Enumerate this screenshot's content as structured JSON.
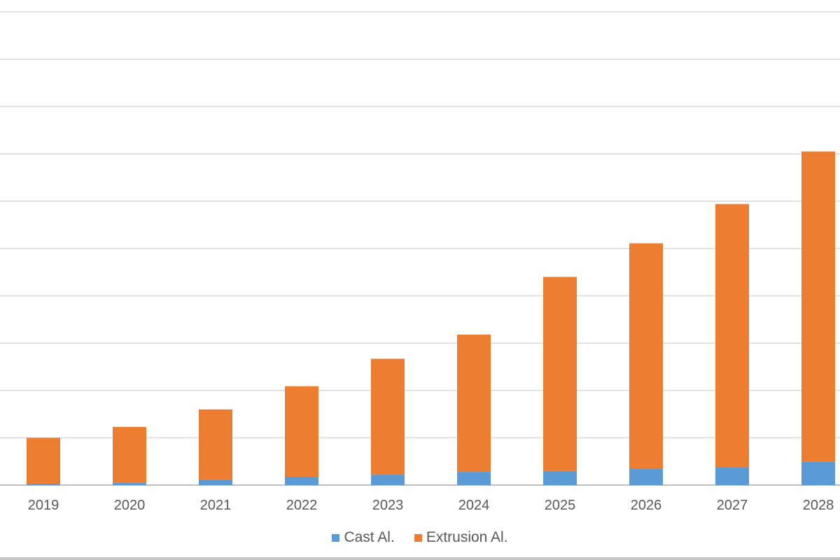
{
  "chart_data": {
    "type": "bar",
    "stacked": true,
    "categories": [
      "2019",
      "2020",
      "2021",
      "2022",
      "2023",
      "2024",
      "2025",
      "2026",
      "2027",
      "2028"
    ],
    "series": [
      {
        "name": "Cast Al.",
        "color": "#5b9bd5",
        "values": [
          0.03,
          0.05,
          0.12,
          0.17,
          0.22,
          0.28,
          0.3,
          0.34,
          0.37,
          0.49
        ]
      },
      {
        "name": "Extrusion Al.",
        "color": "#ed7d31",
        "values": [
          0.97,
          1.18,
          1.48,
          1.92,
          2.45,
          2.9,
          4.1,
          4.77,
          5.57,
          6.56
        ]
      }
    ],
    "ylim": [
      0,
      10
    ],
    "grid": true,
    "legend": "bottom"
  }
}
